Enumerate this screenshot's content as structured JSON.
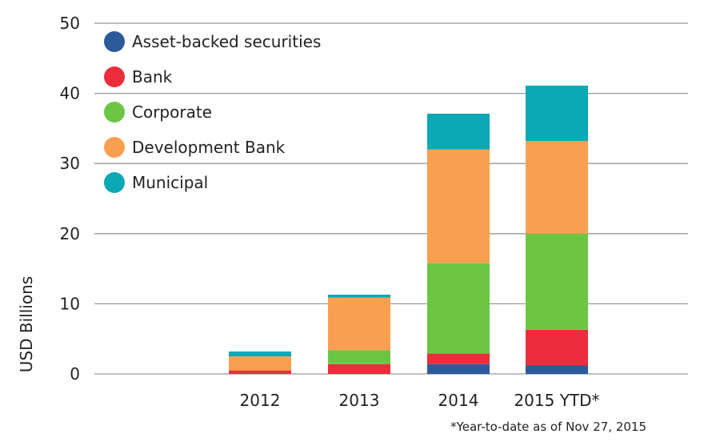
{
  "chart_data": {
    "type": "bar",
    "stacked": true,
    "categories": [
      "2012",
      "2013",
      "2014",
      "2015 YTD*"
    ],
    "series": [
      {
        "name": "Asset-backed securities",
        "color": "#2d5a9b",
        "values": [
          0.0,
          0.0,
          1.4,
          1.2
        ]
      },
      {
        "name": "Bank",
        "color": "#ec2d3c",
        "values": [
          0.5,
          1.4,
          1.5,
          5.1
        ]
      },
      {
        "name": "Corporate",
        "color": "#6cc644",
        "values": [
          0.0,
          2.0,
          12.9,
          13.7
        ]
      },
      {
        "name": "Development Bank",
        "color": "#f9a050",
        "values": [
          2.0,
          7.5,
          16.2,
          13.2
        ]
      },
      {
        "name": "Municipal",
        "color": "#0ba8b5",
        "values": [
          0.7,
          0.4,
          5.1,
          7.9
        ]
      }
    ],
    "ylabel": "USD Billions",
    "ylim": [
      0,
      50
    ],
    "yticks": [
      0,
      10,
      20,
      30,
      40,
      50
    ],
    "grid": true,
    "legend_position": "top-left",
    "footnote": "*Year-to-date as of Nov 27, 2015"
  }
}
